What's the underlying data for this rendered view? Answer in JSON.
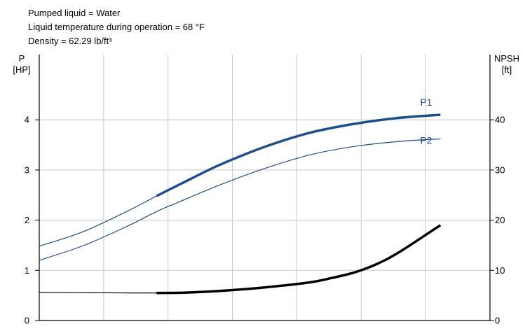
{
  "chart_data": {
    "type": "line",
    "annotations": [
      "Pumped liquid = Water",
      "Liquid temperature during operation = 68 °F",
      "Density = 62.29 lb/ft³"
    ],
    "left_axis": {
      "label_top": "P",
      "label_unit": "[HP]",
      "ylim": [
        0,
        5.3
      ],
      "ticks": [
        "0",
        "1",
        "2",
        "3",
        "4"
      ],
      "tick_values": [
        0,
        1,
        2,
        3,
        4
      ]
    },
    "right_axis": {
      "label_top": "NPSH",
      "label_unit": "[ft]",
      "ylim": [
        0,
        53
      ],
      "ticks": [
        "0",
        "10",
        "20",
        "30",
        "40"
      ],
      "tick_values": [
        0,
        10,
        20,
        30,
        40
      ]
    },
    "xlim": [
      0,
      10
    ],
    "grid": true,
    "colors": {
      "power": "#1f4e8c",
      "npsh": "#000000",
      "grid": "#c8c8c8"
    },
    "series": [
      {
        "name": "P1",
        "axis": "left",
        "color": "#1f4e8c",
        "x": [
          0,
          1,
          2,
          2.6,
          3.2,
          4,
          5,
          6,
          7,
          8,
          8.9
        ],
        "y": [
          1.48,
          1.78,
          2.2,
          2.48,
          2.75,
          3.1,
          3.46,
          3.74,
          3.92,
          4.04,
          4.1
        ],
        "bold_from": 2.6
      },
      {
        "name": "P2",
        "axis": "left",
        "color": "#1f4e8c",
        "x": [
          0,
          1,
          2,
          2.6,
          3.2,
          4,
          5,
          6,
          7,
          8,
          8.9
        ],
        "y": [
          1.2,
          1.5,
          1.9,
          2.17,
          2.4,
          2.7,
          3.03,
          3.3,
          3.47,
          3.57,
          3.62
        ],
        "bold_from": 99
      },
      {
        "name": "NPSH",
        "axis": "right",
        "color": "#000000",
        "x": [
          0,
          1,
          2,
          2.6,
          3.2,
          4,
          5,
          6,
          6.5,
          7,
          7.5,
          8,
          8.9
        ],
        "y": [
          5.6,
          5.55,
          5.5,
          5.5,
          5.55,
          5.9,
          6.6,
          7.6,
          8.5,
          9.6,
          11.3,
          13.7,
          19
        ]
      }
    ],
    "series_labels": [
      "P1",
      "P2"
    ]
  }
}
